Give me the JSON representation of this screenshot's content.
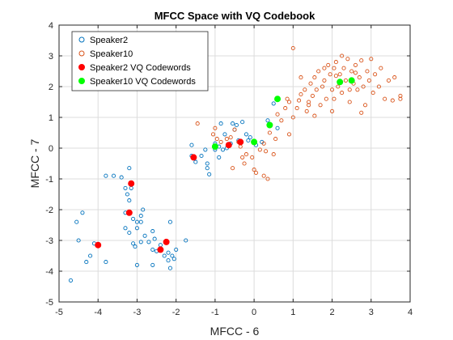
{
  "chart_data": {
    "type": "scatter",
    "title": "MFCC Space with VQ Codebook",
    "xlabel": "MFCC - 6",
    "ylabel": "MFCC - 7",
    "xlim": [
      -5,
      4
    ],
    "ylim": [
      -5,
      4
    ],
    "xticks": [
      "-5",
      "-4",
      "-3",
      "-2",
      "-1",
      "0",
      "1",
      "2",
      "3",
      "4"
    ],
    "yticks": [
      "-5",
      "-4",
      "-3",
      "-2",
      "-1",
      "0",
      "1",
      "2",
      "3",
      "4"
    ],
    "grid": true,
    "legend_position": "top-left",
    "series": [
      {
        "name": "Speaker2",
        "marker": "open-circle",
        "color": "#0072BD",
        "points": [
          [
            -4.7,
            -4.3
          ],
          [
            -4.5,
            -3.0
          ],
          [
            -4.3,
            -3.7
          ],
          [
            -4.2,
            -3.5
          ],
          [
            -4.4,
            -2.1
          ],
          [
            -4.55,
            -2.4
          ],
          [
            -4.1,
            -3.1
          ],
          [
            -3.8,
            -3.7
          ],
          [
            -3.8,
            -0.9
          ],
          [
            -3.6,
            -0.9
          ],
          [
            -3.4,
            -0.95
          ],
          [
            -3.3,
            -1.3
          ],
          [
            -3.25,
            -1.5
          ],
          [
            -3.2,
            -0.65
          ],
          [
            -3.15,
            -1.3
          ],
          [
            -3.2,
            -1.7
          ],
          [
            -3.3,
            -2.1
          ],
          [
            -3.1,
            -2.3
          ],
          [
            -3.0,
            -2.4
          ],
          [
            -3.0,
            -2.6
          ],
          [
            -3.3,
            -2.6
          ],
          [
            -3.2,
            -2.75
          ],
          [
            -2.9,
            -2.2
          ],
          [
            -2.85,
            -2.0
          ],
          [
            -2.9,
            -2.4
          ],
          [
            -2.8,
            -2.85
          ],
          [
            -3.05,
            -3.2
          ],
          [
            -3.1,
            -3.1
          ],
          [
            -2.6,
            -2.7
          ],
          [
            -2.55,
            -2.95
          ],
          [
            -2.9,
            -3.05
          ],
          [
            -2.7,
            -3.05
          ],
          [
            -2.6,
            -3.3
          ],
          [
            -2.5,
            -3.35
          ],
          [
            -2.4,
            -3.15
          ],
          [
            -2.3,
            -3.5
          ],
          [
            -2.2,
            -3.4
          ],
          [
            -2.1,
            -3.5
          ],
          [
            -2.05,
            -3.6
          ],
          [
            -2.2,
            -3.65
          ],
          [
            -2.15,
            -3.9
          ],
          [
            -2.6,
            -3.8
          ],
          [
            -3.0,
            -3.8
          ],
          [
            -2.0,
            -3.3
          ],
          [
            -2.15,
            -2.4
          ],
          [
            -1.75,
            -3.0
          ],
          [
            -1.6,
            -0.25
          ],
          [
            -1.5,
            -0.45
          ],
          [
            -1.35,
            -0.25
          ],
          [
            -1.25,
            -0.05
          ],
          [
            -1.2,
            -0.5
          ],
          [
            -1.15,
            -0.85
          ],
          [
            -1.2,
            -0.65
          ],
          [
            -1.0,
            -0.05
          ],
          [
            -1.0,
            0.15
          ],
          [
            -0.9,
            0.05
          ],
          [
            -0.8,
            -0.05
          ],
          [
            -0.7,
            0.0
          ],
          [
            -0.6,
            0.15
          ],
          [
            -0.55,
            0.8
          ],
          [
            -0.5,
            0.6
          ],
          [
            -0.45,
            0.75
          ],
          [
            -0.4,
            0.25
          ],
          [
            -0.3,
            0.85
          ],
          [
            -0.2,
            0.45
          ],
          [
            -0.15,
            0.25
          ],
          [
            -0.1,
            0.35
          ],
          [
            0.05,
            0.1
          ],
          [
            0.2,
            0.2
          ],
          [
            0.35,
            0.9
          ],
          [
            0.5,
            1.45
          ],
          [
            0.6,
            0.65
          ],
          [
            -0.9,
            -0.3
          ],
          [
            -0.75,
            0.45
          ],
          [
            -1.6,
            0.1
          ],
          [
            -0.85,
            0.8
          ]
        ]
      },
      {
        "name": "Speaker10",
        "marker": "open-circle",
        "color": "#D95319",
        "points": [
          [
            -1.45,
            0.8
          ],
          [
            -1.0,
            0.65
          ],
          [
            -1.05,
            0.45
          ],
          [
            -0.95,
            0.3
          ],
          [
            -0.85,
            0.2
          ],
          [
            -0.7,
            0.3
          ],
          [
            -0.6,
            0.35
          ],
          [
            -0.5,
            0.6
          ],
          [
            -0.4,
            0.2
          ],
          [
            -0.35,
            0.05
          ],
          [
            -0.3,
            -0.3
          ],
          [
            -0.25,
            -0.5
          ],
          [
            -0.2,
            -0.2
          ],
          [
            -0.05,
            -0.3
          ],
          [
            0.0,
            -0.7
          ],
          [
            0.05,
            -0.8
          ],
          [
            0.15,
            -0.05
          ],
          [
            0.25,
            0.15
          ],
          [
            0.3,
            -0.1
          ],
          [
            0.35,
            -1.0
          ],
          [
            0.4,
            0.5
          ],
          [
            0.5,
            -0.2
          ],
          [
            0.55,
            0.3
          ],
          [
            0.6,
            1.1
          ],
          [
            0.7,
            0.9
          ],
          [
            0.8,
            1.3
          ],
          [
            0.85,
            1.6
          ],
          [
            0.9,
            1.5
          ],
          [
            1.0,
            1.0
          ],
          [
            1.1,
            1.3
          ],
          [
            1.15,
            1.55
          ],
          [
            1.2,
            1.75
          ],
          [
            1.3,
            1.9
          ],
          [
            1.35,
            1.2
          ],
          [
            1.4,
            1.5
          ],
          [
            1.45,
            2.1
          ],
          [
            1.5,
            1.7
          ],
          [
            1.55,
            2.3
          ],
          [
            1.6,
            1.9
          ],
          [
            1.65,
            2.5
          ],
          [
            1.7,
            1.4
          ],
          [
            1.75,
            2.0
          ],
          [
            1.8,
            2.2
          ],
          [
            1.85,
            1.6
          ],
          [
            1.9,
            2.7
          ],
          [
            1.95,
            2.4
          ],
          [
            2.0,
            1.9
          ],
          [
            2.05,
            2.6
          ],
          [
            2.1,
            2.8
          ],
          [
            2.15,
            2.0
          ],
          [
            2.2,
            2.4
          ],
          [
            2.25,
            1.8
          ],
          [
            2.3,
            2.6
          ],
          [
            2.35,
            2.2
          ],
          [
            2.4,
            2.9
          ],
          [
            2.45,
            1.5
          ],
          [
            2.5,
            2.5
          ],
          [
            2.55,
            2.1
          ],
          [
            2.6,
            2.7
          ],
          [
            2.65,
            1.9
          ],
          [
            2.7,
            2.3
          ],
          [
            2.75,
            2.85
          ],
          [
            2.8,
            2.0
          ],
          [
            2.85,
            1.4
          ],
          [
            2.9,
            2.5
          ],
          [
            2.95,
            2.2
          ],
          [
            3.0,
            2.9
          ],
          [
            3.05,
            1.8
          ],
          [
            3.1,
            2.4
          ],
          [
            3.2,
            2.0
          ],
          [
            3.25,
            2.6
          ],
          [
            3.35,
            1.6
          ],
          [
            3.45,
            2.2
          ],
          [
            3.55,
            1.55
          ],
          [
            3.75,
            1.7
          ],
          [
            3.75,
            1.6
          ],
          [
            3.6,
            2.3
          ],
          [
            2.1,
            2.35
          ],
          [
            2.05,
            1.6
          ],
          [
            1.4,
            1.4
          ],
          [
            1.0,
            3.25
          ],
          [
            2.0,
            1.2
          ],
          [
            1.2,
            2.3
          ],
          [
            2.25,
            3.0
          ],
          [
            2.45,
            1.9
          ],
          [
            2.6,
            2.45
          ],
          [
            1.55,
            1.05
          ],
          [
            0.9,
            0.45
          ],
          [
            0.25,
            -0.9
          ],
          [
            -0.55,
            -0.65
          ],
          [
            2.75,
            1.15
          ],
          [
            1.8,
            2.6
          ]
        ]
      },
      {
        "name": "Speaker2 VQ Codewords",
        "marker": "filled-circle",
        "color": "#FF0000",
        "points": [
          [
            -4.0,
            -3.15
          ],
          [
            -3.15,
            -1.15
          ],
          [
            -3.2,
            -2.1
          ],
          [
            -2.25,
            -3.05
          ],
          [
            -2.4,
            -3.3
          ],
          [
            -1.55,
            -0.3
          ],
          [
            -0.65,
            0.1
          ],
          [
            -0.35,
            0.2
          ]
        ]
      },
      {
        "name": "Speaker10 VQ Codewords",
        "marker": "filled-circle",
        "color": "#00FF00",
        "points": [
          [
            -1.0,
            0.05
          ],
          [
            0.0,
            0.2
          ],
          [
            0.4,
            0.75
          ],
          [
            0.6,
            1.6
          ],
          [
            2.2,
            2.15
          ],
          [
            2.5,
            2.2
          ]
        ]
      }
    ]
  }
}
